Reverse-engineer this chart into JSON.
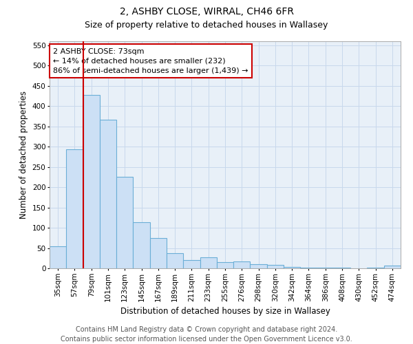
{
  "title1": "2, ASHBY CLOSE, WIRRAL, CH46 6FR",
  "title2": "Size of property relative to detached houses in Wallasey",
  "xlabel": "Distribution of detached houses by size in Wallasey",
  "ylabel": "Number of detached properties",
  "categories": [
    "35sqm",
    "57sqm",
    "79sqm",
    "101sqm",
    "123sqm",
    "145sqm",
    "167sqm",
    "189sqm",
    "211sqm",
    "233sqm",
    "255sqm",
    "276sqm",
    "298sqm",
    "320sqm",
    "342sqm",
    "364sqm",
    "386sqm",
    "408sqm",
    "430sqm",
    "452sqm",
    "474sqm"
  ],
  "values": [
    55,
    293,
    428,
    367,
    225,
    113,
    75,
    38,
    20,
    28,
    15,
    17,
    10,
    8,
    3,
    2,
    2,
    1,
    0,
    1,
    6
  ],
  "bar_color": "#cce0f5",
  "bar_edge_color": "#6aaed6",
  "vline_x": 1.5,
  "vline_color": "#cc0000",
  "annotation_text": "2 ASHBY CLOSE: 73sqm\n← 14% of detached houses are smaller (232)\n86% of semi-detached houses are larger (1,439) →",
  "annotation_box_facecolor": "#ffffff",
  "annotation_box_edgecolor": "#cc0000",
  "ylim": [
    0,
    560
  ],
  "yticks": [
    0,
    50,
    100,
    150,
    200,
    250,
    300,
    350,
    400,
    450,
    500,
    550
  ],
  "grid_color": "#c8d8ec",
  "bg_color": "#e8f0f8",
  "footer1": "Contains HM Land Registry data © Crown copyright and database right 2024.",
  "footer2": "Contains public sector information licensed under the Open Government Licence v3.0.",
  "title1_fontsize": 10,
  "title2_fontsize": 9,
  "axis_label_fontsize": 8.5,
  "tick_fontsize": 7.5,
  "annotation_fontsize": 8,
  "footer_fontsize": 7
}
